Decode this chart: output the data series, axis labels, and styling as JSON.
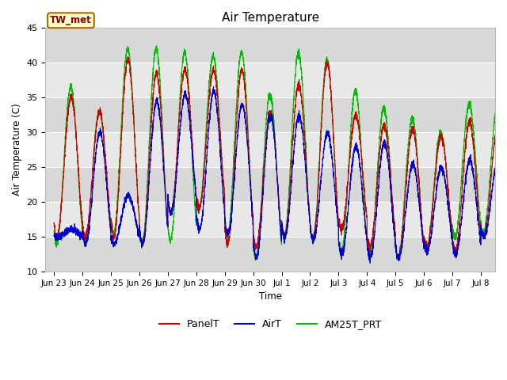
{
  "title": "Air Temperature",
  "xlabel": "Time",
  "ylabel": "Air Temperature (C)",
  "ylim": [
    10,
    45
  ],
  "yticks": [
    10,
    15,
    20,
    25,
    30,
    35,
    40,
    45
  ],
  "background_color": "#ffffff",
  "plot_bg_color": "#e8e8e8",
  "grid_color": "#ffffff",
  "band_colors": [
    "#d8d8d8",
    "#e8e8e8"
  ],
  "annotation_text": "TW_met",
  "annotation_bg": "#ffffcc",
  "annotation_border": "#aa6600",
  "annotation_text_color": "#880000",
  "series": {
    "PanelT": {
      "color": "#cc0000",
      "lw": 0.8
    },
    "AirT": {
      "color": "#0000cc",
      "lw": 0.8
    },
    "AM25T_PRT": {
      "color": "#00bb00",
      "lw": 0.8
    }
  },
  "tick_labels": [
    "Jun 23",
    "Jun 24",
    "Jun 25",
    "Jun 26",
    "Jun 27",
    "Jun 28",
    "Jun 29",
    "Jun 30",
    "Jul 1",
    "Jul 2",
    "Jul 3",
    "Jul 4",
    "Jul 5",
    "Jul 6",
    "Jul 7",
    "Jul 8"
  ],
  "n_days": 16,
  "pts_per_day": 288,
  "panel_highs": [
    35,
    33,
    40.5,
    38.5,
    39,
    39,
    39,
    33,
    37,
    40,
    32.5,
    31,
    30.5,
    29.5,
    31.5,
    31
  ],
  "panel_lows": [
    15,
    15,
    15,
    14,
    18.5,
    19,
    14,
    13.5,
    15,
    14.5,
    16,
    13.5,
    12,
    13.5,
    13,
    15
  ],
  "air_highs": [
    16,
    30,
    21,
    34.5,
    35.5,
    36,
    34,
    32.5,
    32.5,
    30,
    28,
    28.5,
    25.5,
    25,
    26,
    26
  ],
  "air_lows": [
    15,
    14,
    14,
    14,
    18.5,
    16,
    15.5,
    12,
    15,
    14.5,
    12.5,
    12,
    12,
    13,
    12.5,
    15
  ],
  "am25_highs": [
    36.5,
    33,
    42,
    42,
    41.5,
    41,
    41.5,
    35.5,
    41.5,
    40.5,
    36,
    33.5,
    32,
    30,
    34,
    34
  ],
  "am25_lows": [
    14,
    14,
    15.5,
    14,
    14.5,
    19,
    15,
    12,
    15,
    14.5,
    12.5,
    12.5,
    12,
    13.5,
    15,
    15.5
  ]
}
